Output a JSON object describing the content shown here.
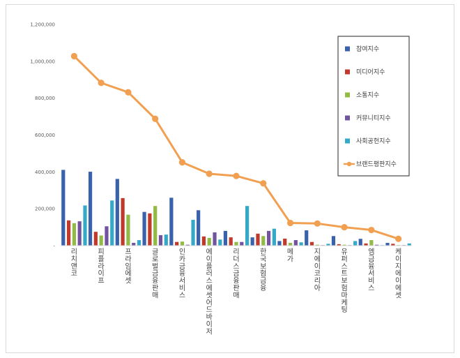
{
  "chart_data": {
    "type": "bar",
    "categories": [
      "리치앤코",
      "피플라이프",
      "프라임에셋",
      "글로벌금융판매",
      "인카금융서비스",
      "에이플러스에셋어드바이저",
      "리더스금융판매",
      "한국보험금융",
      "메가",
      "지에이코리아",
      "유퍼스트보험마케팅",
      "엠금융서비스",
      "케이지에이에셋"
    ],
    "series": [
      {
        "name": "참여지수",
        "type": "bar",
        "color": "#3a62ac",
        "values": [
          411000,
          401000,
          362000,
          183000,
          260000,
          192000,
          80000,
          45000,
          25000,
          83000,
          52000,
          37000,
          15000
        ]
      },
      {
        "name": "미디어지수",
        "type": "bar",
        "color": "#c0392b",
        "values": [
          137000,
          75000,
          258000,
          175000,
          20000,
          50000,
          45000,
          65000,
          38000,
          20000,
          8000,
          12000,
          10000
        ]
      },
      {
        "name": "소통지수",
        "type": "bar",
        "color": "#92bb45",
        "values": [
          122000,
          55000,
          168000,
          215000,
          22000,
          42000,
          20000,
          52000,
          15000,
          5000,
          5000,
          30000,
          3000
        ]
      },
      {
        "name": "커뮤니티지수",
        "type": "bar",
        "color": "#7153a0",
        "values": [
          132000,
          105000,
          15000,
          57000,
          5000,
          72000,
          20000,
          80000,
          30000,
          3000,
          3000,
          5000,
          3000
        ]
      },
      {
        "name": "사회공헌지수",
        "type": "bar",
        "color": "#35a9c8",
        "values": [
          218000,
          245000,
          30000,
          60000,
          140000,
          33000,
          215000,
          92000,
          18000,
          10000,
          25000,
          3000,
          12000
        ]
      },
      {
        "name": "브랜드평판지수",
        "type": "line",
        "color": "#f0a050",
        "values": [
          1028000,
          883000,
          832000,
          688000,
          452000,
          390000,
          378000,
          338000,
          123000,
          120000,
          100000,
          85000,
          37000
        ]
      }
    ],
    "yticks": [
      "-",
      "200,000",
      "400,000",
      "600,000",
      "800,000",
      "1,000,000",
      "1,200,000"
    ],
    "ylim": [
      0,
      1200000
    ],
    "grid": false,
    "legend_position": "top-right"
  }
}
